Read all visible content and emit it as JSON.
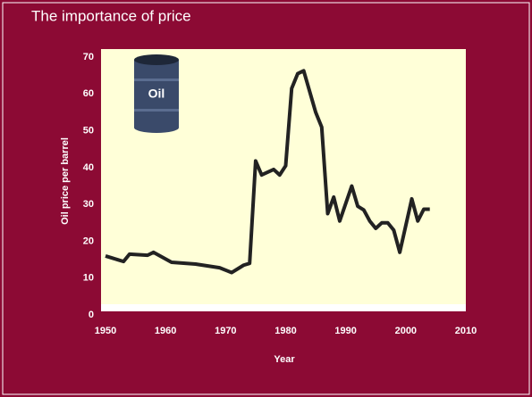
{
  "chart_data": {
    "type": "line",
    "title": "The importance of price",
    "x_label": "Year",
    "y_label": "Oil price per barrel",
    "annotation": "Oil",
    "x": [
      1950,
      1952,
      1953,
      1954,
      1957,
      1958,
      1961,
      1965,
      1969,
      1971,
      1973,
      1974,
      1975,
      1976,
      1978,
      1979,
      1980,
      1981,
      1982,
      1983,
      1985,
      1986,
      1987,
      1988,
      1989,
      1991,
      1992,
      1993,
      1994,
      1995,
      1996,
      1997,
      1998,
      1999,
      2001,
      2002,
      2003,
      2004
    ],
    "series": [
      {
        "color": "#222222",
        "values": [
          16,
          15,
          14.5,
          16.5,
          16.2,
          17,
          14.3,
          13.8,
          12.8,
          11.5,
          13.5,
          14,
          41.8,
          38,
          39.5,
          38,
          40.5,
          61.5,
          65.5,
          66.3,
          55,
          51,
          27.5,
          32,
          25.5,
          35,
          29.5,
          28.5,
          25.5,
          23.5,
          25,
          25,
          23,
          17,
          31.5,
          25.5,
          28.7,
          28.7
        ]
      }
    ],
    "xlim": [
      1950,
      2010
    ],
    "xticks": [
      1950,
      1960,
      1970,
      1980,
      1990,
      2000,
      2010
    ],
    "ylim": [
      0,
      70
    ],
    "yticks": [
      0,
      10,
      20,
      30,
      40,
      50,
      60,
      70
    ]
  }
}
